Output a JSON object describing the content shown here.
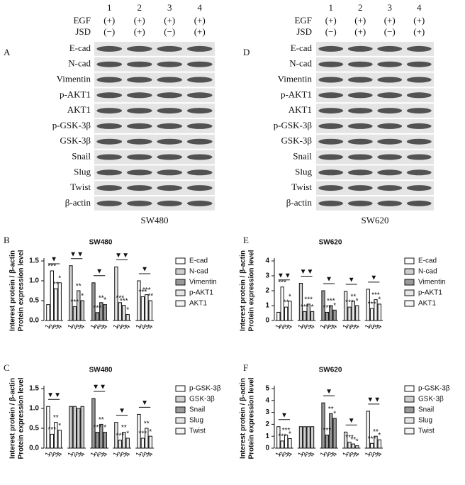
{
  "blots": [
    {
      "panel": "A",
      "lanes": [
        "1",
        "2",
        "3",
        "4"
      ],
      "rows": [
        {
          "label": "EGF",
          "marks": [
            "(+)",
            "(+)",
            "(+)",
            "(+)"
          ]
        },
        {
          "label": "JSD",
          "marks": [
            "(−)",
            "(+)",
            "(−)",
            "(+)"
          ]
        }
      ],
      "proteins": [
        "E-cad",
        "N-cad",
        "Vimentin",
        "p-AKT1",
        "AKT1",
        "p-GSK-3β",
        "GSK-3β",
        "Snail",
        "Slug",
        "Twist",
        "β-actin"
      ],
      "cell_line": "SW480"
    },
    {
      "panel": "D",
      "lanes": [
        "1",
        "2",
        "3",
        "4"
      ],
      "rows": [
        {
          "label": "EGF",
          "marks": [
            "(+)",
            "(+)",
            "(+)",
            "(+)"
          ]
        },
        {
          "label": "JSD",
          "marks": [
            "(−)",
            "(+)",
            "(−)",
            "(+)"
          ]
        }
      ],
      "proteins": [
        "E-cad",
        "N-cad",
        "Vimentin",
        "p-AKT1",
        "AKT1",
        "p-GSK-3β",
        "GSK-3β",
        "Snail",
        "Slug",
        "Twist",
        "β-actin"
      ],
      "cell_line": "SW620"
    }
  ],
  "chart_data": [
    {
      "type": "bar",
      "panel": "B",
      "title": "SW480",
      "ylabel": [
        "Interest protein / β-actin",
        "Protein expression level"
      ],
      "ylim": [
        0,
        1.5
      ],
      "yticks": [
        {
          "value": 0,
          "label": "0.0"
        },
        {
          "value": 0.5,
          "label": "0.5"
        },
        {
          "value": 1,
          "label": "1.0"
        },
        {
          "value": 1.5,
          "label": "1.5"
        }
      ],
      "categories": [
        "1",
        "2",
        "3",
        "4"
      ],
      "legend": "right",
      "series": [
        {
          "name": "E-cad",
          "color": "#ffffff",
          "values": [
            0.4,
            1.25,
            0.8,
            0.95
          ],
          "stars": [
            "***",
            "**",
            "*"
          ],
          "trend": "▼"
        },
        {
          "name": "N-cad",
          "color": "#cfcfcf",
          "values": [
            1.38,
            0.35,
            0.75,
            0.5
          ],
          "stars": [
            "***",
            "**",
            "*"
          ],
          "trend": "▼▼"
        },
        {
          "name": "Vimentin",
          "color": "#9a9a9a",
          "values": [
            0.95,
            0.2,
            0.45,
            0.4
          ],
          "stars": [
            "***",
            "**",
            "*"
          ],
          "trend": "▼"
        },
        {
          "name": "p-AKT1",
          "color": "#e6e6e6",
          "values": [
            1.35,
            0.45,
            0.38,
            0.15
          ],
          "stars": [
            "***",
            "***",
            "*"
          ],
          "trend": "▼▼"
        },
        {
          "name": "AKT1",
          "color": "#f5f5f5",
          "values": [
            1.0,
            0.6,
            0.65,
            0.5
          ],
          "stars": [
            "***",
            "***",
            "**"
          ],
          "trend": "▼"
        }
      ]
    },
    {
      "type": "bar",
      "panel": "E",
      "title": "SW620",
      "ylabel": [
        "Interest protein / β-actin",
        "Protein expression level"
      ],
      "ylim": [
        0,
        4
      ],
      "yticks": [
        0,
        1,
        2,
        3,
        4
      ],
      "categories": [
        "1",
        "2",
        "3",
        "4"
      ],
      "legend": "right",
      "series": [
        {
          "name": "E-cad",
          "color": "#ffffff",
          "values": [
            0.55,
            2.25,
            0.9,
            1.3
          ],
          "stars": [
            "***",
            "**",
            "*"
          ],
          "trend": "▼▼"
        },
        {
          "name": "N-cad",
          "color": "#cfcfcf",
          "values": [
            2.5,
            0.6,
            1.1,
            0.6
          ],
          "stars": [
            "***",
            "***",
            "*"
          ],
          "trend": "▼▼"
        },
        {
          "name": "Vimentin",
          "color": "#9a9a9a",
          "values": [
            2.0,
            0.55,
            1.0,
            0.7
          ],
          "stars": [
            "***",
            "***",
            "*"
          ],
          "trend": "▼"
        },
        {
          "name": "p-AKT1",
          "color": "#e6e6e6",
          "values": [
            1.95,
            0.9,
            1.3,
            1.0
          ],
          "stars": [
            "***",
            "**",
            "*"
          ],
          "trend": "▼"
        },
        {
          "name": "AKT1",
          "color": "#f5f5f5",
          "values": [
            2.1,
            0.8,
            1.4,
            1.1
          ],
          "stars": [
            "***",
            "***",
            "*"
          ],
          "trend": "▼"
        }
      ]
    },
    {
      "type": "bar",
      "panel": "C",
      "title": "SW480",
      "ylabel": [
        "Interest protein / β-actin",
        "Protein expression level"
      ],
      "ylim": [
        0,
        1.5
      ],
      "yticks": [
        {
          "value": 0,
          "label": "0.0"
        },
        {
          "value": 0.5,
          "label": "0.5"
        },
        {
          "value": 1,
          "label": "1.0"
        },
        {
          "value": 1.5,
          "label": "1.5"
        }
      ],
      "categories": [
        "1",
        "2",
        "3",
        "4"
      ],
      "legend": "right",
      "series": [
        {
          "name": "p-GSK-3β",
          "color": "#ffffff",
          "values": [
            1.05,
            0.35,
            0.65,
            0.45
          ],
          "stars": [
            "***",
            "**",
            "*"
          ],
          "trend": "▼▼"
        },
        {
          "name": "GSK-3β",
          "color": "#cfcfcf",
          "values": [
            1.05,
            1.05,
            1.0,
            1.05
          ]
        },
        {
          "name": "Snail",
          "color": "#9a9a9a",
          "values": [
            1.25,
            0.4,
            0.6,
            0.4
          ],
          "stars": [
            "***",
            "**",
            "*"
          ],
          "trend": "▼▼"
        },
        {
          "name": "Slug",
          "color": "#e6e6e6",
          "values": [
            0.65,
            0.2,
            0.4,
            0.25
          ],
          "stars": [
            "***",
            "**",
            "*"
          ],
          "trend": "▼"
        },
        {
          "name": "Twist",
          "color": "#f5f5f5",
          "values": [
            0.85,
            0.25,
            0.5,
            0.3
          ],
          "stars": [
            "***",
            "**",
            "*"
          ],
          "trend": "▼"
        }
      ]
    },
    {
      "type": "bar",
      "panel": "F",
      "title": "SW620",
      "ylabel": [
        "Interest protein / β-actin",
        "Protein expression level"
      ],
      "ylim": [
        0,
        5
      ],
      "yticks": [
        0,
        1,
        2,
        3,
        4,
        5
      ],
      "categories": [
        "1",
        "2",
        "3",
        "4"
      ],
      "legend": "right",
      "series": [
        {
          "name": "p-GSK-3β",
          "color": "#ffffff",
          "values": [
            1.8,
            0.6,
            1.1,
            0.8
          ],
          "stars": [
            "***",
            "***",
            "*"
          ],
          "trend": "▼"
        },
        {
          "name": "GSK-3β",
          "color": "#cfcfcf",
          "values": [
            1.8,
            1.8,
            1.8,
            1.8
          ]
        },
        {
          "name": "Snail",
          "color": "#9a9a9a",
          "values": [
            3.8,
            1.1,
            2.9,
            2.5
          ],
          "stars": [
            "***",
            "**",
            "*"
          ],
          "trend": "▼"
        },
        {
          "name": "Slug",
          "color": "#e6e6e6",
          "values": [
            1.35,
            0.5,
            0.35,
            0.2
          ],
          "stars": [
            "***",
            "**",
            "*"
          ],
          "trend": "▼"
        },
        {
          "name": "Twist",
          "color": "#f5f5f5",
          "values": [
            3.1,
            0.4,
            1.0,
            0.7
          ],
          "stars": [
            "***",
            "**",
            "*"
          ],
          "trend": "▼▼"
        }
      ]
    }
  ]
}
